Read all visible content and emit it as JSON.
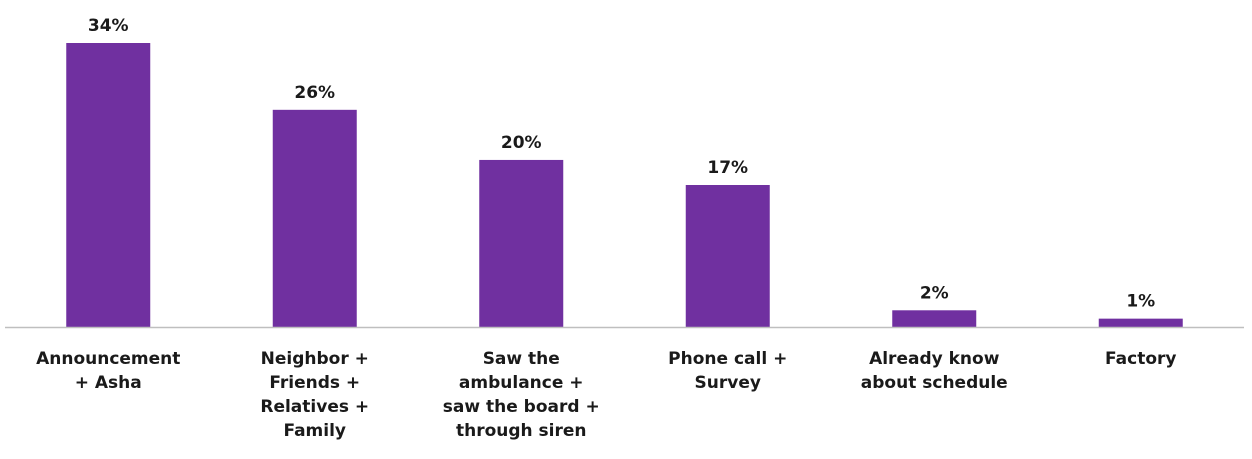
{
  "chart_data": {
    "type": "bar",
    "categories": [
      [
        "Announcement",
        "+ Asha"
      ],
      [
        "Neighbor +",
        "Friends +",
        "Relatives +",
        "Family"
      ],
      [
        "Saw the",
        "ambulance +",
        "saw the board +",
        "through siren"
      ],
      [
        "Phone call +",
        "Survey"
      ],
      [
        "Already know",
        "about schedule"
      ],
      [
        "Factory"
      ]
    ],
    "values": [
      34,
      26,
      20,
      17,
      2,
      1
    ],
    "data_labels": [
      "34%",
      "26%",
      "20%",
      "17%",
      "2%",
      "1%"
    ],
    "unit": "%",
    "ylim": [
      0,
      34
    ],
    "grid": false,
    "legend": "none",
    "colors": {
      "bar": "#7030A0",
      "axis": "#BFBFBF",
      "text": "#1A1A1A"
    }
  }
}
